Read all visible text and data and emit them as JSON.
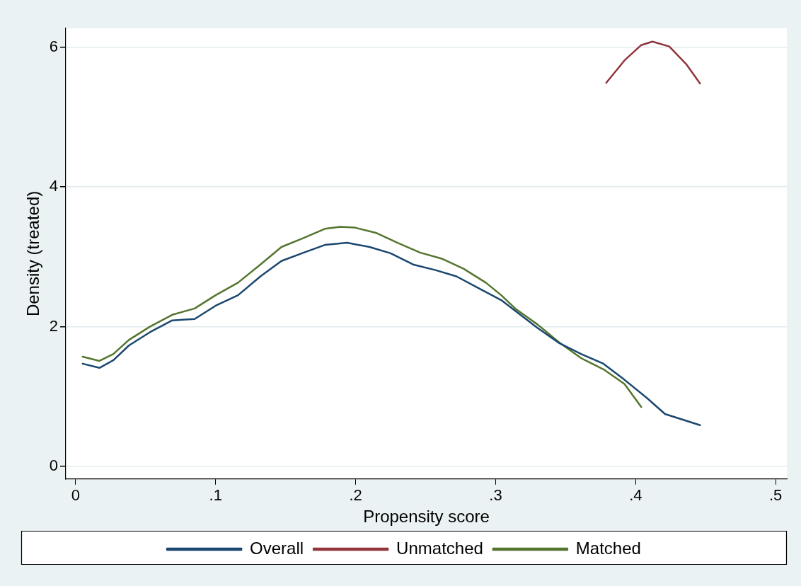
{
  "chart_data": {
    "type": "line",
    "xlabel": "Propensity score",
    "ylabel": "Density (treated)",
    "xlim": [
      -0.007,
      0.508
    ],
    "xticks": [
      {
        "value": 0,
        "label": "0"
      },
      {
        "value": 0.1,
        "label": ".1"
      },
      {
        "value": 0.2,
        "label": ".2"
      },
      {
        "value": 0.3,
        "label": ".3"
      },
      {
        "value": 0.4,
        "label": ".4"
      },
      {
        "value": 0.5,
        "label": ".5"
      }
    ],
    "ylim": [
      -0.18,
      6.27
    ],
    "yticks": [
      0,
      2,
      4,
      6
    ],
    "grid": "y",
    "legend": "bottom",
    "marker": "none",
    "line_style": "solid",
    "series": [
      {
        "name": "Overall",
        "color": "#1a476f",
        "x": [
          0.005,
          0.017,
          0.027,
          0.038,
          0.053,
          0.069,
          0.085,
          0.1,
          0.116,
          0.132,
          0.147,
          0.163,
          0.178,
          0.194,
          0.21,
          0.225,
          0.241,
          0.257,
          0.272,
          0.288,
          0.304,
          0.317,
          0.33,
          0.345,
          0.361,
          0.377,
          0.392,
          0.408,
          0.421,
          0.446
        ],
        "values": [
          1.47,
          1.41,
          1.52,
          1.73,
          1.92,
          2.09,
          2.11,
          2.3,
          2.45,
          2.72,
          2.94,
          3.06,
          3.17,
          3.2,
          3.14,
          3.05,
          2.89,
          2.81,
          2.72,
          2.55,
          2.38,
          2.18,
          1.98,
          1.77,
          1.61,
          1.47,
          1.24,
          0.98,
          0.75,
          0.59
        ]
      },
      {
        "name": "Unmatched",
        "color": "#90353b",
        "x": [
          0.379,
          0.392,
          0.404,
          0.412,
          0.424,
          0.436,
          0.446
        ],
        "values": [
          5.49,
          5.81,
          6.03,
          6.08,
          6.01,
          5.76,
          5.48
        ]
      },
      {
        "name": "Matched",
        "color": "#55752f",
        "x": [
          0.005,
          0.017,
          0.027,
          0.038,
          0.053,
          0.069,
          0.085,
          0.1,
          0.116,
          0.132,
          0.147,
          0.163,
          0.178,
          0.189,
          0.199,
          0.215,
          0.23,
          0.246,
          0.262,
          0.277,
          0.293,
          0.304,
          0.314,
          0.33,
          0.345,
          0.361,
          0.377,
          0.392,
          0.404
        ],
        "values": [
          1.57,
          1.51,
          1.61,
          1.81,
          2.0,
          2.17,
          2.26,
          2.45,
          2.63,
          2.89,
          3.14,
          3.27,
          3.4,
          3.43,
          3.42,
          3.34,
          3.2,
          3.06,
          2.97,
          2.83,
          2.63,
          2.45,
          2.26,
          2.03,
          1.78,
          1.55,
          1.39,
          1.18,
          0.85
        ]
      }
    ]
  }
}
